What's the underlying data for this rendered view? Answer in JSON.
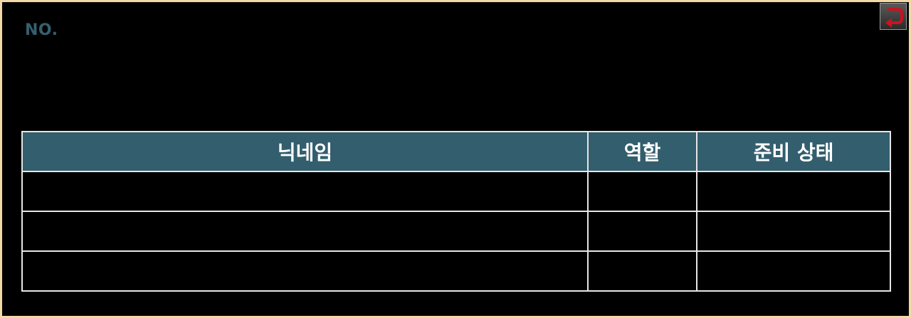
{
  "header": {
    "room_no_label": "NO."
  },
  "back_button": {
    "icon": "return-arrow-icon",
    "accent_color": "#c8141e"
  },
  "player_table": {
    "columns": [
      "닉네임",
      "역할",
      "준비 상태"
    ],
    "rows": [
      [
        "",
        "",
        ""
      ],
      [
        "",
        "",
        ""
      ],
      [
        "",
        "",
        ""
      ]
    ],
    "header_color": "#335e6d"
  }
}
